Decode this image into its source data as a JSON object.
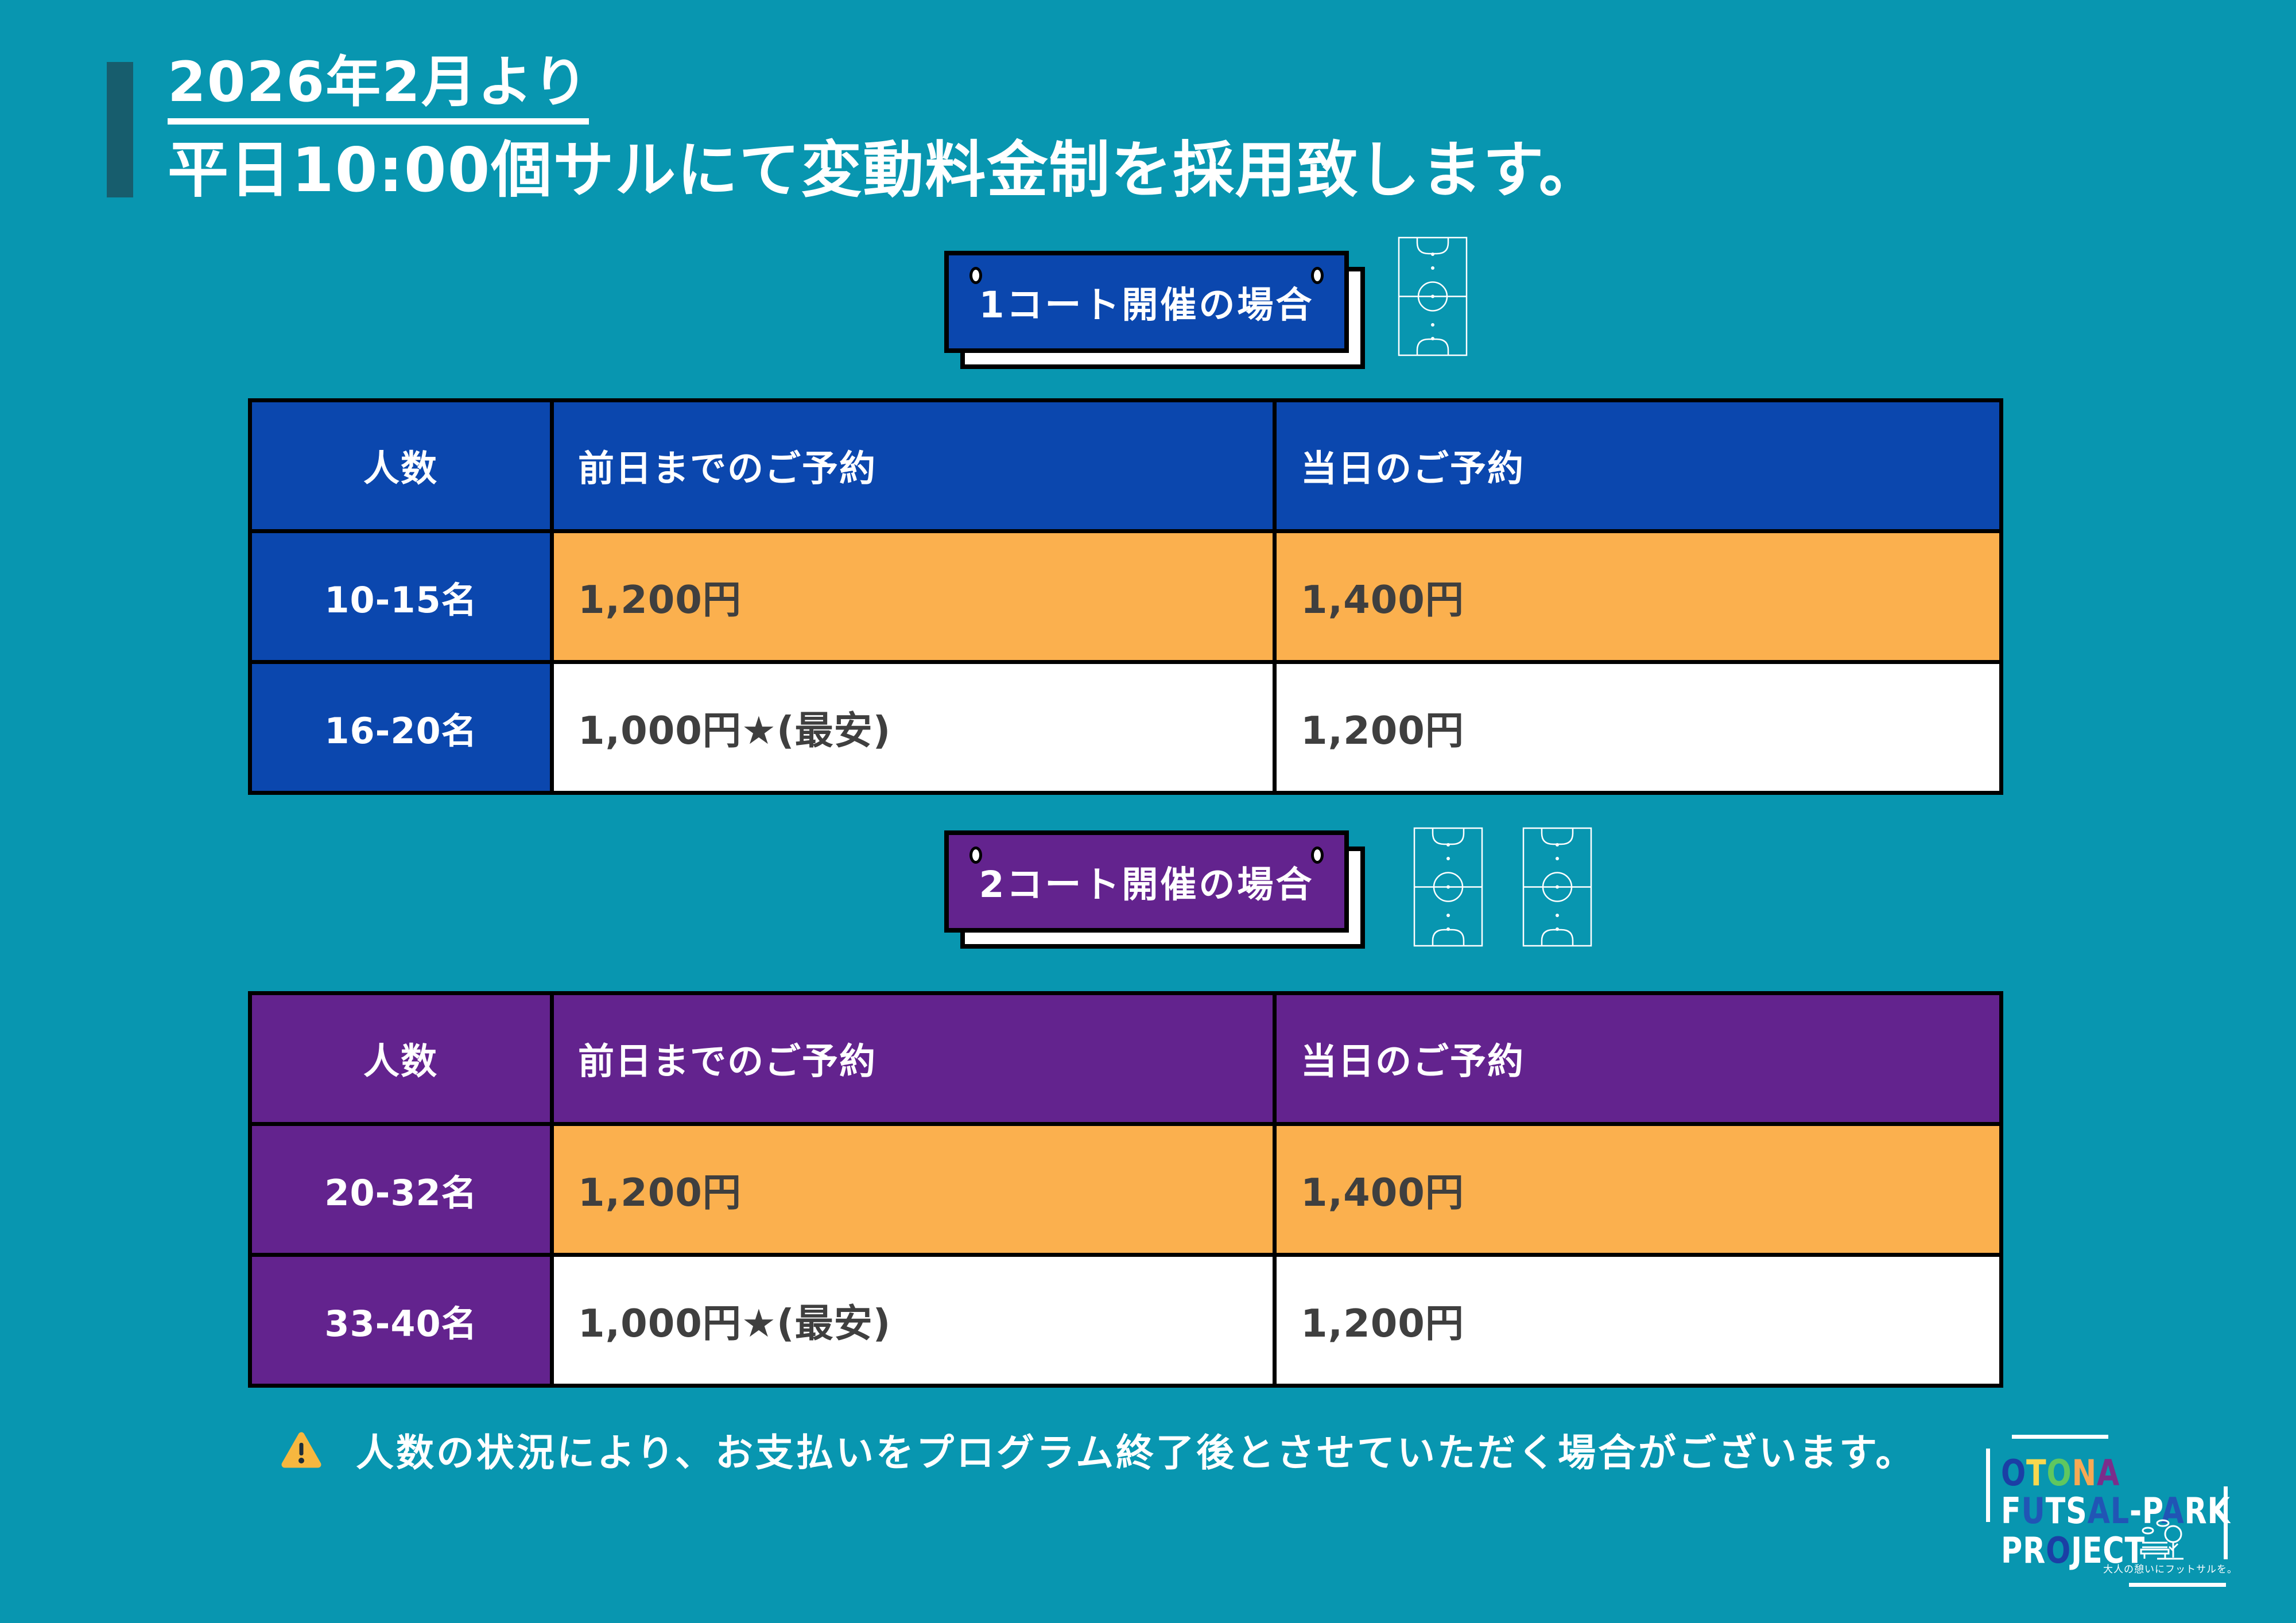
{
  "title": {
    "line1": "2026年2月より",
    "line2": "平日10:00個サルにて変動料金制を採用致します。"
  },
  "sections": [
    {
      "badge": "1コート開催の場合",
      "accent_color": "#0B47AE",
      "court_count": 1,
      "table": {
        "headers": [
          "人数",
          "前日までのご予約",
          "当日のご予約"
        ],
        "rows": [
          {
            "size": "10-15名",
            "advance": "1,200円",
            "same_day": "1,400円",
            "highlighted": true
          },
          {
            "size": "16-20名",
            "advance": "1,000円★(最安)",
            "same_day": "1,200円",
            "highlighted": false
          }
        ]
      }
    },
    {
      "badge": "2コート開催の場合",
      "accent_color": "#63238E",
      "court_count": 2,
      "table": {
        "headers": [
          "人数",
          "前日までのご予約",
          "当日のご予約"
        ],
        "rows": [
          {
            "size": "20-32名",
            "advance": "1,200円",
            "same_day": "1,400円",
            "highlighted": true
          },
          {
            "size": "33-40名",
            "advance": "1,000円★(最安)",
            "same_day": "1,200円",
            "highlighted": false
          }
        ]
      }
    }
  ],
  "note": "人数の状況により、お支払いをプログラム終了後とさせていただく場合がございます。",
  "logo": {
    "line1": [
      {
        "ch": "O",
        "color": "#1B3FA5"
      },
      {
        "ch": "T",
        "color": "#F7D84E"
      },
      {
        "ch": "O",
        "color": "#5FC75F"
      },
      {
        "ch": "N",
        "color": "#F7A954"
      },
      {
        "ch": "A",
        "color": "#7B2D8B"
      }
    ],
    "line2": [
      {
        "ch": "F",
        "color": "#FFFFFF"
      },
      {
        "ch": "U",
        "color": "#2155B5"
      },
      {
        "ch": "T",
        "color": "#FFFFFF"
      },
      {
        "ch": "S",
        "color": "#FFFFFF"
      },
      {
        "ch": "A",
        "color": "#2155B5"
      },
      {
        "ch": "L",
        "color": "#2155B5"
      },
      {
        "ch": "-",
        "color": "#FFFFFF"
      },
      {
        "ch": "P",
        "color": "#FFFFFF"
      },
      {
        "ch": "A",
        "color": "#2155B5"
      },
      {
        "ch": "R",
        "color": "#FFFFFF"
      },
      {
        "ch": "K",
        "color": "#FFFFFF"
      }
    ],
    "line3": [
      {
        "ch": "P",
        "color": "#FFFFFF"
      },
      {
        "ch": "R",
        "color": "#FFFFFF"
      },
      {
        "ch": "O",
        "color": "#1B3FA5"
      },
      {
        "ch": "J",
        "color": "#FFFFFF"
      },
      {
        "ch": "E",
        "color": "#FFFFFF"
      },
      {
        "ch": "C",
        "color": "#FFFFFF"
      },
      {
        "ch": "T",
        "color": "#FFFFFF"
      }
    ],
    "tagline": "大人の憩いにフットサルを。"
  },
  "colors": {
    "background": "#0896B0",
    "accent_bar": "#175D6D",
    "highlight": "#FBB04E",
    "price_text": "#3F3F3F",
    "warning_yellow": "#F7B73F"
  }
}
